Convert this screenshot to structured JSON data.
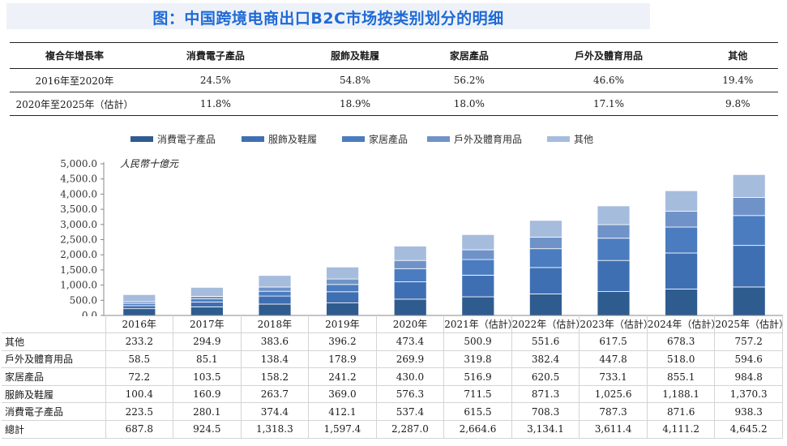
{
  "title": "图：中国跨境电商出口B2C市场按类别划分的明细",
  "cagr_table": {
    "headers": [
      "複合年增長率",
      "消費電子產品",
      "服飾及鞋履",
      "家居產品",
      "戶外及體育用品",
      "其他"
    ],
    "rows": [
      [
        "2016年至2020年",
        "24.5%",
        "54.8%",
        "56.2%",
        "46.6%",
        "19.4%"
      ],
      [
        "2020年至2025年（估計）",
        "11.8%",
        "18.9%",
        "18.0%",
        "17.1%",
        "9.8%"
      ]
    ]
  },
  "colors": {
    "title": "#1f6ad6",
    "banner_bg": "#eef2f8",
    "series": [
      "#2f5c8f",
      "#3f6fb3",
      "#4b7cbf",
      "#6f93c8",
      "#a6bcdd"
    ]
  },
  "chart_data": {
    "type": "bar",
    "stacked": true,
    "unit_label": "人民幣十億元",
    "categories": [
      "2016年",
      "2017年",
      "2018年",
      "2019年",
      "2020年",
      "2021年（估計）",
      "2022年（估計）",
      "2023年（估計）",
      "2024年（估計）",
      "2025年（估計）"
    ],
    "series": [
      {
        "name": "消費電子產品",
        "values": [
          223.5,
          280.1,
          374.4,
          412.1,
          537.4,
          615.5,
          708.3,
          787.3,
          871.6,
          938.3
        ]
      },
      {
        "name": "服飾及鞋履",
        "values": [
          100.4,
          160.9,
          263.7,
          369.0,
          576.3,
          711.5,
          871.3,
          1025.6,
          1188.1,
          1370.3
        ]
      },
      {
        "name": "家居產品",
        "values": [
          72.2,
          103.5,
          158.2,
          241.2,
          430.0,
          516.9,
          620.5,
          733.1,
          855.1,
          984.8
        ]
      },
      {
        "name": "戶外及體育用品",
        "values": [
          58.5,
          85.1,
          138.4,
          178.9,
          269.9,
          319.8,
          382.4,
          447.8,
          518.0,
          594.6
        ]
      },
      {
        "name": "其他",
        "values": [
          233.2,
          294.9,
          383.6,
          396.2,
          473.4,
          500.9,
          551.6,
          617.5,
          678.3,
          757.2
        ]
      }
    ],
    "y_ticks": [
      "0.0",
      "500.0",
      "1,000.0",
      "1,500.0",
      "2,000.0",
      "2,500.0",
      "3,000.0",
      "3,500.0",
      "4,000.0",
      "4,500.0",
      "5,000.0"
    ],
    "ylim": [
      0,
      5000
    ],
    "legend_position": "top",
    "grid": false
  },
  "data_table": {
    "rows": [
      {
        "label": "其他",
        "values": [
          "233.2",
          "294.9",
          "383.6",
          "396.2",
          "473.4",
          "500.9",
          "551.6",
          "617.5",
          "678.3",
          "757.2"
        ]
      },
      {
        "label": "戶外及體育用品",
        "values": [
          "58.5",
          "85.1",
          "138.4",
          "178.9",
          "269.9",
          "319.8",
          "382.4",
          "447.8",
          "518.0",
          "594.6"
        ]
      },
      {
        "label": "家居產品",
        "values": [
          "72.2",
          "103.5",
          "158.2",
          "241.2",
          "430.0",
          "516.9",
          "620.5",
          "733.1",
          "855.1",
          "984.8"
        ]
      },
      {
        "label": "服飾及鞋履",
        "values": [
          "100.4",
          "160.9",
          "263.7",
          "369.0",
          "576.3",
          "711.5",
          "871.3",
          "1,025.6",
          "1,188.1",
          "1,370.3"
        ]
      },
      {
        "label": "消費電子產品",
        "values": [
          "223.5",
          "280.1",
          "374.4",
          "412.1",
          "537.4",
          "615.5",
          "708.3",
          "787.3",
          "871.6",
          "938.3"
        ]
      },
      {
        "label": "總計",
        "values": [
          "687.8",
          "924.5",
          "1,318.3",
          "1,597.4",
          "2,287.0",
          "2,664.6",
          "3,134.1",
          "3,611.4",
          "4,111.2",
          "4,645.2"
        ]
      }
    ]
  }
}
